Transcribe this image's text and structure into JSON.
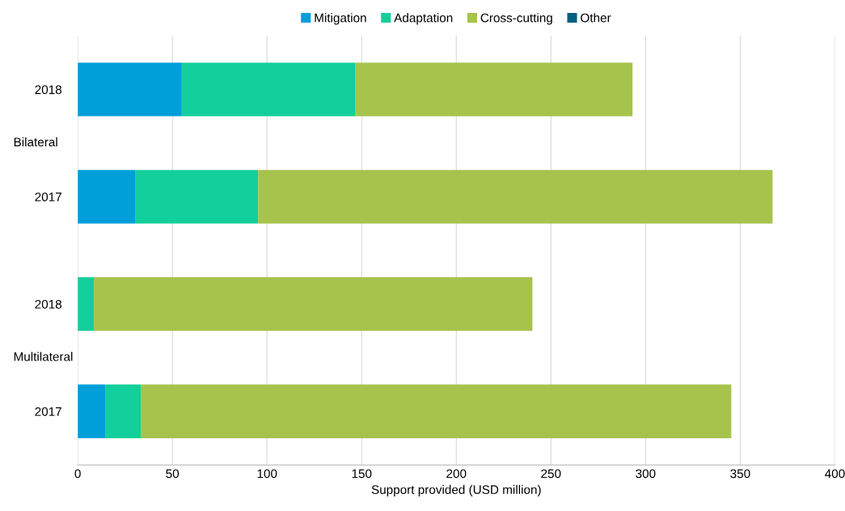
{
  "chart_data": {
    "type": "bar",
    "orientation": "horizontal",
    "stacked": true,
    "categories": [
      "2018",
      "2017",
      "2018",
      "2017"
    ],
    "series": [
      {
        "name": "Mitigation",
        "color": "#009fda",
        "values": [
          55,
          30.3,
          0,
          14.5
        ]
      },
      {
        "name": "Adaptation",
        "color": "#13cf9b",
        "values": [
          91.5,
          65,
          8.5,
          18.8
        ]
      },
      {
        "name": "Cross-cutting",
        "color": "#a6c34c",
        "values": [
          146.6,
          271.8,
          231.7,
          312
        ]
      },
      {
        "name": "Other",
        "color": "#005f7f",
        "values": [
          0,
          0,
          0,
          0
        ]
      }
    ],
    "annotations": [
      "Bilateral",
      "Multilateral"
    ],
    "xlabel": "Support provided (USD million)",
    "xlim": [
      0,
      400
    ],
    "xticks": [
      0,
      50,
      100,
      150,
      200,
      250,
      300,
      350,
      400
    ],
    "grid": "x",
    "legend": "top"
  }
}
